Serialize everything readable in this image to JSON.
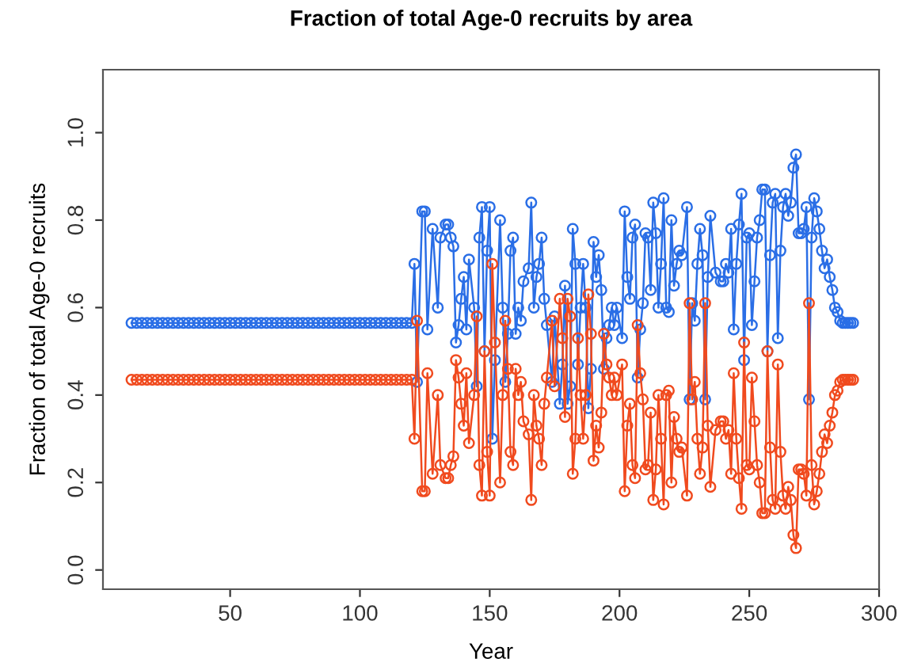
{
  "chart_data": {
    "type": "line",
    "title": "Fraction of total Age-0 recruits by area",
    "xlabel": "Year",
    "ylabel": "Fraction of total Age-0 recruits",
    "x": [
      12,
      14,
      16,
      18,
      20,
      22,
      24,
      26,
      28,
      30,
      32,
      34,
      36,
      38,
      40,
      42,
      44,
      46,
      48,
      50,
      52,
      54,
      56,
      58,
      60,
      62,
      64,
      66,
      68,
      70,
      72,
      74,
      76,
      78,
      80,
      82,
      84,
      86,
      88,
      90,
      92,
      94,
      96,
      98,
      100,
      102,
      104,
      106,
      108,
      110,
      112,
      114,
      116,
      118,
      120,
      121,
      122,
      124,
      125,
      126,
      128,
      130,
      131,
      133,
      134,
      135,
      136,
      137,
      138,
      139,
      140,
      141,
      142,
      144,
      145,
      146,
      147,
      148,
      149,
      150,
      151,
      152,
      154,
      155,
      156,
      157,
      158,
      159,
      160,
      161,
      162,
      163,
      165,
      166,
      167,
      168,
      169,
      170,
      171,
      172,
      174,
      175,
      177,
      178,
      179,
      180,
      181,
      182,
      183,
      184,
      185,
      186,
      187,
      188,
      189,
      190,
      191,
      192,
      193,
      194,
      195,
      196,
      197,
      198,
      199,
      201,
      202,
      203,
      204,
      205,
      206,
      207,
      208,
      209,
      210,
      211,
      212,
      213,
      214,
      215,
      216,
      217,
      218,
      219,
      220,
      221,
      222,
      223,
      224,
      226,
      227,
      228,
      229,
      230,
      231,
      232,
      233,
      234,
      235,
      237,
      239,
      240,
      241,
      242,
      243,
      244,
      245,
      246,
      247,
      248,
      249,
      250,
      251,
      252,
      253,
      254,
      255,
      256,
      257,
      258,
      259,
      260,
      261,
      262,
      263,
      264,
      265,
      266,
      267,
      268,
      269,
      270,
      271,
      272,
      273,
      274,
      275,
      276,
      277,
      278,
      279,
      280,
      281,
      282,
      283,
      284,
      285,
      286,
      287,
      288,
      289,
      290
    ],
    "series": [
      {
        "color": "#2a6ee6",
        "values": [
          0.565,
          0.565,
          0.565,
          0.565,
          0.565,
          0.565,
          0.565,
          0.565,
          0.565,
          0.565,
          0.565,
          0.565,
          0.565,
          0.565,
          0.565,
          0.565,
          0.565,
          0.565,
          0.565,
          0.565,
          0.565,
          0.565,
          0.565,
          0.565,
          0.565,
          0.565,
          0.565,
          0.565,
          0.565,
          0.565,
          0.565,
          0.565,
          0.565,
          0.565,
          0.565,
          0.565,
          0.565,
          0.565,
          0.565,
          0.565,
          0.565,
          0.565,
          0.565,
          0.565,
          0.565,
          0.565,
          0.565,
          0.565,
          0.565,
          0.565,
          0.565,
          0.565,
          0.565,
          0.565,
          0.565,
          0.7,
          0.43,
          0.82,
          0.82,
          0.55,
          0.78,
          0.6,
          0.76,
          0.79,
          0.79,
          0.76,
          0.74,
          0.52,
          0.56,
          0.62,
          0.67,
          0.55,
          0.71,
          0.6,
          0.42,
          0.76,
          0.83,
          0.5,
          0.73,
          0.83,
          0.3,
          0.48,
          0.8,
          0.6,
          0.43,
          0.54,
          0.73,
          0.76,
          0.54,
          0.6,
          0.57,
          0.66,
          0.69,
          0.84,
          0.6,
          0.67,
          0.7,
          0.76,
          0.62,
          0.56,
          0.43,
          0.58,
          0.38,
          0.47,
          0.65,
          0.38,
          0.42,
          0.78,
          0.7,
          0.47,
          0.6,
          0.7,
          0.6,
          0.37,
          0.46,
          0.75,
          0.67,
          0.72,
          0.64,
          0.46,
          0.53,
          0.56,
          0.6,
          0.56,
          0.6,
          0.53,
          0.82,
          0.67,
          0.62,
          0.76,
          0.79,
          0.44,
          0.55,
          0.61,
          0.77,
          0.76,
          0.64,
          0.84,
          0.77,
          0.6,
          0.7,
          0.85,
          0.6,
          0.59,
          0.8,
          0.65,
          0.7,
          0.73,
          0.72,
          0.83,
          0.39,
          0.61,
          0.57,
          0.7,
          0.78,
          0.72,
          0.39,
          0.67,
          0.81,
          0.68,
          0.66,
          0.66,
          0.7,
          0.68,
          0.78,
          0.55,
          0.7,
          0.79,
          0.86,
          0.48,
          0.76,
          0.77,
          0.56,
          0.66,
          0.76,
          0.8,
          0.87,
          0.87,
          0.5,
          0.72,
          0.84,
          0.86,
          0.53,
          0.73,
          0.83,
          0.86,
          0.81,
          0.84,
          0.92,
          0.95,
          0.77,
          0.77,
          0.78,
          0.83,
          0.39,
          0.76,
          0.85,
          0.82,
          0.78,
          0.73,
          0.69,
          0.71,
          0.67,
          0.64,
          0.6,
          0.59,
          0.57,
          0.565,
          0.565,
          0.565,
          0.565,
          0.565
        ]
      },
      {
        "color": "#f04a1e",
        "values": [
          0.435,
          0.435,
          0.435,
          0.435,
          0.435,
          0.435,
          0.435,
          0.435,
          0.435,
          0.435,
          0.435,
          0.435,
          0.435,
          0.435,
          0.435,
          0.435,
          0.435,
          0.435,
          0.435,
          0.435,
          0.435,
          0.435,
          0.435,
          0.435,
          0.435,
          0.435,
          0.435,
          0.435,
          0.435,
          0.435,
          0.435,
          0.435,
          0.435,
          0.435,
          0.435,
          0.435,
          0.435,
          0.435,
          0.435,
          0.435,
          0.435,
          0.435,
          0.435,
          0.435,
          0.435,
          0.435,
          0.435,
          0.435,
          0.435,
          0.435,
          0.435,
          0.435,
          0.435,
          0.435,
          0.435,
          0.3,
          0.57,
          0.18,
          0.18,
          0.45,
          0.22,
          0.4,
          0.24,
          0.21,
          0.21,
          0.24,
          0.26,
          0.48,
          0.44,
          0.38,
          0.33,
          0.45,
          0.29,
          0.4,
          0.58,
          0.24,
          0.17,
          0.5,
          0.27,
          0.17,
          0.7,
          0.52,
          0.2,
          0.4,
          0.57,
          0.46,
          0.27,
          0.24,
          0.46,
          0.4,
          0.43,
          0.34,
          0.31,
          0.16,
          0.4,
          0.33,
          0.3,
          0.24,
          0.38,
          0.44,
          0.57,
          0.42,
          0.62,
          0.53,
          0.35,
          0.62,
          0.58,
          0.22,
          0.3,
          0.53,
          0.4,
          0.3,
          0.4,
          0.63,
          0.54,
          0.25,
          0.33,
          0.28,
          0.36,
          0.54,
          0.47,
          0.44,
          0.4,
          0.44,
          0.4,
          0.47,
          0.18,
          0.33,
          0.38,
          0.24,
          0.21,
          0.56,
          0.45,
          0.39,
          0.23,
          0.24,
          0.36,
          0.16,
          0.23,
          0.4,
          0.3,
          0.15,
          0.4,
          0.41,
          0.2,
          0.35,
          0.3,
          0.27,
          0.28,
          0.17,
          0.61,
          0.39,
          0.43,
          0.3,
          0.22,
          0.28,
          0.61,
          0.33,
          0.19,
          0.32,
          0.34,
          0.34,
          0.3,
          0.32,
          0.22,
          0.45,
          0.3,
          0.21,
          0.14,
          0.52,
          0.24,
          0.23,
          0.44,
          0.34,
          0.24,
          0.2,
          0.13,
          0.13,
          0.5,
          0.28,
          0.16,
          0.14,
          0.47,
          0.27,
          0.17,
          0.14,
          0.19,
          0.16,
          0.08,
          0.05,
          0.23,
          0.23,
          0.22,
          0.17,
          0.61,
          0.24,
          0.15,
          0.18,
          0.22,
          0.27,
          0.31,
          0.29,
          0.33,
          0.36,
          0.4,
          0.41,
          0.43,
          0.435,
          0.435,
          0.435,
          0.435,
          0.435
        ]
      }
    ],
    "xlim": [
      1,
      300
    ],
    "xticks": [
      50,
      100,
      150,
      200,
      250,
      300
    ],
    "ylim": [
      -0.044,
      1.144
    ],
    "yticks": [
      {
        "value": 0,
        "label": "0.0"
      },
      {
        "value": 0.2,
        "label": "0.2"
      },
      {
        "value": 0.4,
        "label": "0.4"
      },
      {
        "value": 0.6,
        "label": "0.6"
      },
      {
        "value": 0.8,
        "label": "0.8"
      },
      {
        "value": 1,
        "label": "1.0"
      }
    ],
    "marker": "circle",
    "line_style": "solid",
    "grid": false,
    "legend": false
  }
}
